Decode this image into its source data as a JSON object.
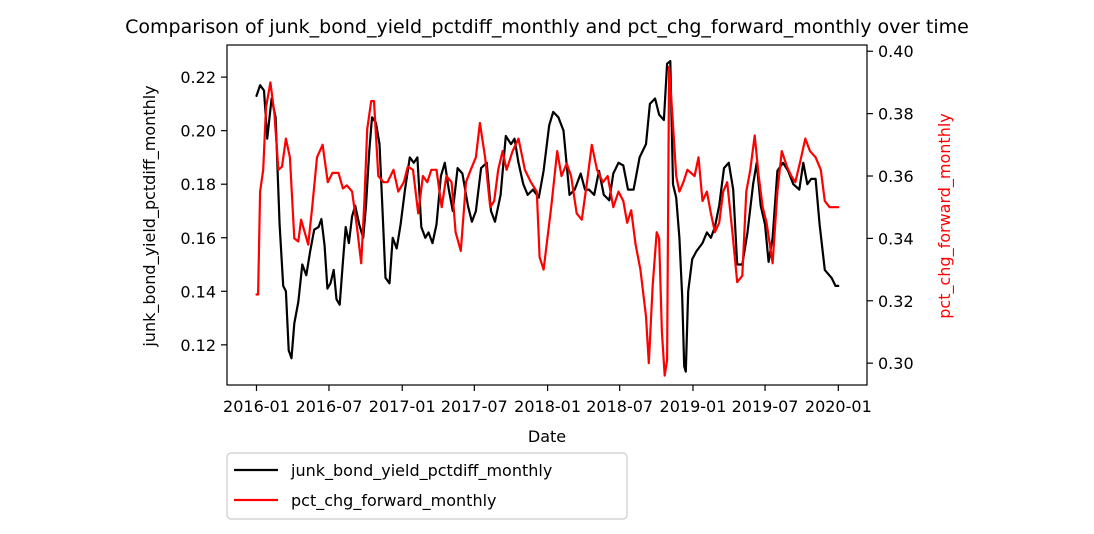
{
  "chart_data": {
    "type": "line",
    "title": "Comparison of junk_bond_yield_pctdiff_monthly and pct_chg_forward_monthly over time",
    "xlabel": "Date",
    "ylabel_left": "junk_bond_yield_pctdiff_monthly",
    "ylabel_right": "pct_chg_forward_monthly",
    "x_ticks": [
      "2016-01",
      "2016-07",
      "2017-01",
      "2017-07",
      "2018-01",
      "2018-07",
      "2019-01",
      "2019-07",
      "2020-01"
    ],
    "y_left_ticks": [
      "0.12",
      "0.14",
      "0.16",
      "0.18",
      "0.20",
      "0.22"
    ],
    "y_right_ticks": [
      "0.30",
      "0.32",
      "0.34",
      "0.36",
      "0.38",
      "0.40"
    ],
    "y_left_lim": [
      0.105,
      0.232
    ],
    "y_right_lim": [
      0.293,
      0.402
    ],
    "x_range": [
      "2015-10-19",
      "2020-03-13"
    ],
    "grid": false,
    "legend_position": "below-left",
    "series": [
      {
        "name": "junk_bond_yield_pctdiff_monthly",
        "color": "#000000",
        "axis": "left",
        "points": [
          [
            "2016-01-01",
            0.213
          ],
          [
            "2016-01-10",
            0.217
          ],
          [
            "2016-01-20",
            0.215
          ],
          [
            "2016-01-28",
            0.197
          ],
          [
            "2016-02-08",
            0.212
          ],
          [
            "2016-02-18",
            0.205
          ],
          [
            "2016-02-28",
            0.165
          ],
          [
            "2016-03-08",
            0.142
          ],
          [
            "2016-03-15",
            0.14
          ],
          [
            "2016-03-22",
            0.118
          ],
          [
            "2016-03-29",
            0.115
          ],
          [
            "2016-04-05",
            0.128
          ],
          [
            "2016-04-15",
            0.136
          ],
          [
            "2016-04-25",
            0.15
          ],
          [
            "2016-05-05",
            0.146
          ],
          [
            "2016-05-15",
            0.155
          ],
          [
            "2016-05-25",
            0.163
          ],
          [
            "2016-06-05",
            0.164
          ],
          [
            "2016-06-12",
            0.167
          ],
          [
            "2016-06-20",
            0.157
          ],
          [
            "2016-06-27",
            0.141
          ],
          [
            "2016-07-05",
            0.143
          ],
          [
            "2016-07-13",
            0.148
          ],
          [
            "2016-07-20",
            0.137
          ],
          [
            "2016-07-28",
            0.135
          ],
          [
            "2016-08-05",
            0.151
          ],
          [
            "2016-08-12",
            0.164
          ],
          [
            "2016-08-20",
            0.158
          ],
          [
            "2016-08-28",
            0.168
          ],
          [
            "2016-09-05",
            0.172
          ],
          [
            "2016-09-15",
            0.165
          ],
          [
            "2016-09-25",
            0.16
          ],
          [
            "2016-10-02",
            0.172
          ],
          [
            "2016-10-10",
            0.192
          ],
          [
            "2016-10-17",
            0.205
          ],
          [
            "2016-10-27",
            0.203
          ],
          [
            "2016-11-05",
            0.195
          ],
          [
            "2016-11-12",
            0.172
          ],
          [
            "2016-11-20",
            0.145
          ],
          [
            "2016-11-30",
            0.143
          ],
          [
            "2016-12-08",
            0.16
          ],
          [
            "2016-12-18",
            0.156
          ],
          [
            "2016-12-28",
            0.165
          ],
          [
            "2017-01-08",
            0.178
          ],
          [
            "2017-01-20",
            0.19
          ],
          [
            "2017-01-30",
            0.188
          ],
          [
            "2017-02-08",
            0.19
          ],
          [
            "2017-02-18",
            0.164
          ],
          [
            "2017-02-28",
            0.16
          ],
          [
            "2017-03-08",
            0.162
          ],
          [
            "2017-03-18",
            0.158
          ],
          [
            "2017-03-28",
            0.165
          ],
          [
            "2017-04-08",
            0.183
          ],
          [
            "2017-04-18",
            0.188
          ],
          [
            "2017-04-28",
            0.178
          ],
          [
            "2017-05-08",
            0.17
          ],
          [
            "2017-05-20",
            0.186
          ],
          [
            "2017-06-01",
            0.184
          ],
          [
            "2017-06-15",
            0.172
          ],
          [
            "2017-06-25",
            0.166
          ],
          [
            "2017-07-05",
            0.17
          ],
          [
            "2017-07-18",
            0.186
          ],
          [
            "2017-08-01",
            0.188
          ],
          [
            "2017-08-12",
            0.17
          ],
          [
            "2017-08-22",
            0.166
          ],
          [
            "2017-09-05",
            0.176
          ],
          [
            "2017-09-18",
            0.198
          ],
          [
            "2017-10-01",
            0.195
          ],
          [
            "2017-10-10",
            0.197
          ],
          [
            "2017-10-20",
            0.188
          ],
          [
            "2017-11-01",
            0.18
          ],
          [
            "2017-11-12",
            0.176
          ],
          [
            "2017-11-25",
            0.178
          ],
          [
            "2017-12-10",
            0.175
          ],
          [
            "2017-12-22",
            0.185
          ],
          [
            "2018-01-05",
            0.202
          ],
          [
            "2018-01-15",
            0.207
          ],
          [
            "2018-01-28",
            0.205
          ],
          [
            "2018-02-10",
            0.2
          ],
          [
            "2018-02-25",
            0.176
          ],
          [
            "2018-03-10",
            0.178
          ],
          [
            "2018-03-25",
            0.184
          ],
          [
            "2018-04-05",
            0.178
          ],
          [
            "2018-04-15",
            0.178
          ],
          [
            "2018-04-28",
            0.176
          ],
          [
            "2018-05-10",
            0.185
          ],
          [
            "2018-05-22",
            0.176
          ],
          [
            "2018-06-05",
            0.174
          ],
          [
            "2018-06-15",
            0.184
          ],
          [
            "2018-06-28",
            0.188
          ],
          [
            "2018-07-10",
            0.187
          ],
          [
            "2018-07-22",
            0.178
          ],
          [
            "2018-08-05",
            0.178
          ],
          [
            "2018-08-20",
            0.19
          ],
          [
            "2018-09-05",
            0.195
          ],
          [
            "2018-09-15",
            0.21
          ],
          [
            "2018-09-28",
            0.212
          ],
          [
            "2018-10-08",
            0.206
          ],
          [
            "2018-10-20",
            0.204
          ],
          [
            "2018-10-28",
            0.225
          ],
          [
            "2018-11-05",
            0.226
          ],
          [
            "2018-11-12",
            0.18
          ],
          [
            "2018-11-20",
            0.175
          ],
          [
            "2018-11-28",
            0.16
          ],
          [
            "2018-12-05",
            0.138
          ],
          [
            "2018-12-10",
            0.112
          ],
          [
            "2018-12-14",
            0.11
          ],
          [
            "2018-12-20",
            0.14
          ],
          [
            "2018-12-30",
            0.152
          ],
          [
            "2019-01-10",
            0.155
          ],
          [
            "2019-01-25",
            0.158
          ],
          [
            "2019-02-05",
            0.162
          ],
          [
            "2019-02-15",
            0.16
          ],
          [
            "2019-02-25",
            0.164
          ],
          [
            "2019-03-08",
            0.172
          ],
          [
            "2019-03-20",
            0.186
          ],
          [
            "2019-04-01",
            0.188
          ],
          [
            "2019-04-12",
            0.178
          ],
          [
            "2019-04-22",
            0.15
          ],
          [
            "2019-05-05",
            0.15
          ],
          [
            "2019-05-18",
            0.162
          ],
          [
            "2019-06-01",
            0.18
          ],
          [
            "2019-06-10",
            0.188
          ],
          [
            "2019-06-20",
            0.172
          ],
          [
            "2019-07-01",
            0.165
          ],
          [
            "2019-07-10",
            0.151
          ],
          [
            "2019-07-20",
            0.16
          ],
          [
            "2019-08-01",
            0.185
          ],
          [
            "2019-08-15",
            0.188
          ],
          [
            "2019-08-28",
            0.185
          ],
          [
            "2019-09-10",
            0.18
          ],
          [
            "2019-09-25",
            0.178
          ],
          [
            "2019-10-05",
            0.188
          ],
          [
            "2019-10-15",
            0.18
          ],
          [
            "2019-10-25",
            0.182
          ],
          [
            "2019-11-05",
            0.182
          ],
          [
            "2019-11-15",
            0.165
          ],
          [
            "2019-11-28",
            0.148
          ],
          [
            "2019-12-15",
            0.145
          ],
          [
            "2019-12-25",
            0.142
          ],
          [
            "2020-01-01",
            0.142
          ]
        ]
      },
      {
        "name": "pct_chg_forward_monthly",
        "color": "#ff0000",
        "axis": "right",
        "points": [
          [
            "2016-01-01",
            0.322
          ],
          [
            "2016-01-05",
            0.322
          ],
          [
            "2016-01-10",
            0.355
          ],
          [
            "2016-01-18",
            0.362
          ],
          [
            "2016-01-25",
            0.382
          ],
          [
            "2016-02-05",
            0.39
          ],
          [
            "2016-02-15",
            0.38
          ],
          [
            "2016-02-25",
            0.362
          ],
          [
            "2016-03-05",
            0.363
          ],
          [
            "2016-03-15",
            0.372
          ],
          [
            "2016-03-25",
            0.366
          ],
          [
            "2016-04-05",
            0.34
          ],
          [
            "2016-04-15",
            0.339
          ],
          [
            "2016-04-22",
            0.346
          ],
          [
            "2016-05-01",
            0.342
          ],
          [
            "2016-05-10",
            0.338
          ],
          [
            "2016-05-20",
            0.35
          ],
          [
            "2016-06-01",
            0.366
          ],
          [
            "2016-06-15",
            0.37
          ],
          [
            "2016-06-28",
            0.358
          ],
          [
            "2016-07-10",
            0.361
          ],
          [
            "2016-07-25",
            0.361
          ],
          [
            "2016-08-05",
            0.356
          ],
          [
            "2016-08-15",
            0.357
          ],
          [
            "2016-08-28",
            0.355
          ],
          [
            "2016-09-10",
            0.343
          ],
          [
            "2016-09-20",
            0.332
          ],
          [
            "2016-09-28",
            0.352
          ],
          [
            "2016-10-05",
            0.375
          ],
          [
            "2016-10-15",
            0.384
          ],
          [
            "2016-10-22",
            0.384
          ],
          [
            "2016-11-02",
            0.36
          ],
          [
            "2016-11-15",
            0.358
          ],
          [
            "2016-11-25",
            0.358
          ],
          [
            "2016-12-10",
            0.362
          ],
          [
            "2016-12-22",
            0.355
          ],
          [
            "2017-01-05",
            0.358
          ],
          [
            "2017-01-15",
            0.363
          ],
          [
            "2017-01-28",
            0.362
          ],
          [
            "2017-02-10",
            0.348
          ],
          [
            "2017-02-22",
            0.36
          ],
          [
            "2017-03-05",
            0.358
          ],
          [
            "2017-03-15",
            0.362
          ],
          [
            "2017-03-28",
            0.362
          ],
          [
            "2017-04-10",
            0.35
          ],
          [
            "2017-04-22",
            0.36
          ],
          [
            "2017-05-05",
            0.358
          ],
          [
            "2017-05-15",
            0.342
          ],
          [
            "2017-05-28",
            0.336
          ],
          [
            "2017-06-10",
            0.358
          ],
          [
            "2017-06-22",
            0.362
          ],
          [
            "2017-07-05",
            0.366
          ],
          [
            "2017-07-15",
            0.377
          ],
          [
            "2017-07-28",
            0.366
          ],
          [
            "2017-08-10",
            0.35
          ],
          [
            "2017-08-20",
            0.352
          ],
          [
            "2017-08-30",
            0.362
          ],
          [
            "2017-09-10",
            0.368
          ],
          [
            "2017-09-20",
            0.362
          ],
          [
            "2017-10-05",
            0.368
          ],
          [
            "2017-10-20",
            0.372
          ],
          [
            "2017-11-05",
            0.362
          ],
          [
            "2017-11-20",
            0.358
          ],
          [
            "2017-12-05",
            0.355
          ],
          [
            "2017-12-12",
            0.334
          ],
          [
            "2017-12-22",
            0.33
          ],
          [
            "2018-01-10",
            0.35
          ],
          [
            "2018-01-25",
            0.368
          ],
          [
            "2018-02-05",
            0.36
          ],
          [
            "2018-02-18",
            0.364
          ],
          [
            "2018-03-01",
            0.36
          ],
          [
            "2018-03-15",
            0.348
          ],
          [
            "2018-03-28",
            0.346
          ],
          [
            "2018-04-10",
            0.358
          ],
          [
            "2018-04-22",
            0.37
          ],
          [
            "2018-05-05",
            0.362
          ],
          [
            "2018-05-20",
            0.358
          ],
          [
            "2018-06-01",
            0.36
          ],
          [
            "2018-06-15",
            0.35
          ],
          [
            "2018-06-28",
            0.355
          ],
          [
            "2018-07-10",
            0.352
          ],
          [
            "2018-07-20",
            0.345
          ],
          [
            "2018-07-30",
            0.349
          ],
          [
            "2018-08-10",
            0.338
          ],
          [
            "2018-08-22",
            0.33
          ],
          [
            "2018-09-05",
            0.315
          ],
          [
            "2018-09-12",
            0.3
          ],
          [
            "2018-09-22",
            0.325
          ],
          [
            "2018-10-02",
            0.342
          ],
          [
            "2018-10-08",
            0.34
          ],
          [
            "2018-10-15",
            0.31
          ],
          [
            "2018-10-22",
            0.296
          ],
          [
            "2018-10-28",
            0.301
          ],
          [
            "2018-11-02",
            0.395
          ],
          [
            "2018-11-10",
            0.38
          ],
          [
            "2018-11-20",
            0.36
          ],
          [
            "2018-11-28",
            0.355
          ],
          [
            "2018-12-08",
            0.358
          ],
          [
            "2018-12-18",
            0.362
          ],
          [
            "2019-01-05",
            0.36
          ],
          [
            "2019-01-15",
            0.366
          ],
          [
            "2019-01-25",
            0.352
          ],
          [
            "2019-02-05",
            0.355
          ],
          [
            "2019-02-15",
            0.348
          ],
          [
            "2019-02-25",
            0.342
          ],
          [
            "2019-03-08",
            0.345
          ],
          [
            "2019-03-18",
            0.355
          ],
          [
            "2019-03-28",
            0.358
          ],
          [
            "2019-04-10",
            0.342
          ],
          [
            "2019-04-22",
            0.326
          ],
          [
            "2019-05-05",
            0.328
          ],
          [
            "2019-05-15",
            0.355
          ],
          [
            "2019-05-25",
            0.362
          ],
          [
            "2019-06-05",
            0.373
          ],
          [
            "2019-06-15",
            0.36
          ],
          [
            "2019-06-25",
            0.35
          ],
          [
            "2019-07-05",
            0.345
          ],
          [
            "2019-07-20",
            0.332
          ],
          [
            "2019-08-01",
            0.355
          ],
          [
            "2019-08-12",
            0.368
          ],
          [
            "2019-08-25",
            0.363
          ],
          [
            "2019-09-05",
            0.36
          ],
          [
            "2019-09-15",
            0.358
          ],
          [
            "2019-09-28",
            0.365
          ],
          [
            "2019-10-10",
            0.372
          ],
          [
            "2019-10-22",
            0.368
          ],
          [
            "2019-11-05",
            0.366
          ],
          [
            "2019-11-18",
            0.362
          ],
          [
            "2019-11-28",
            0.352
          ],
          [
            "2019-12-10",
            0.35
          ],
          [
            "2019-12-25",
            0.35
          ],
          [
            "2020-01-01",
            0.35
          ]
        ]
      }
    ]
  }
}
